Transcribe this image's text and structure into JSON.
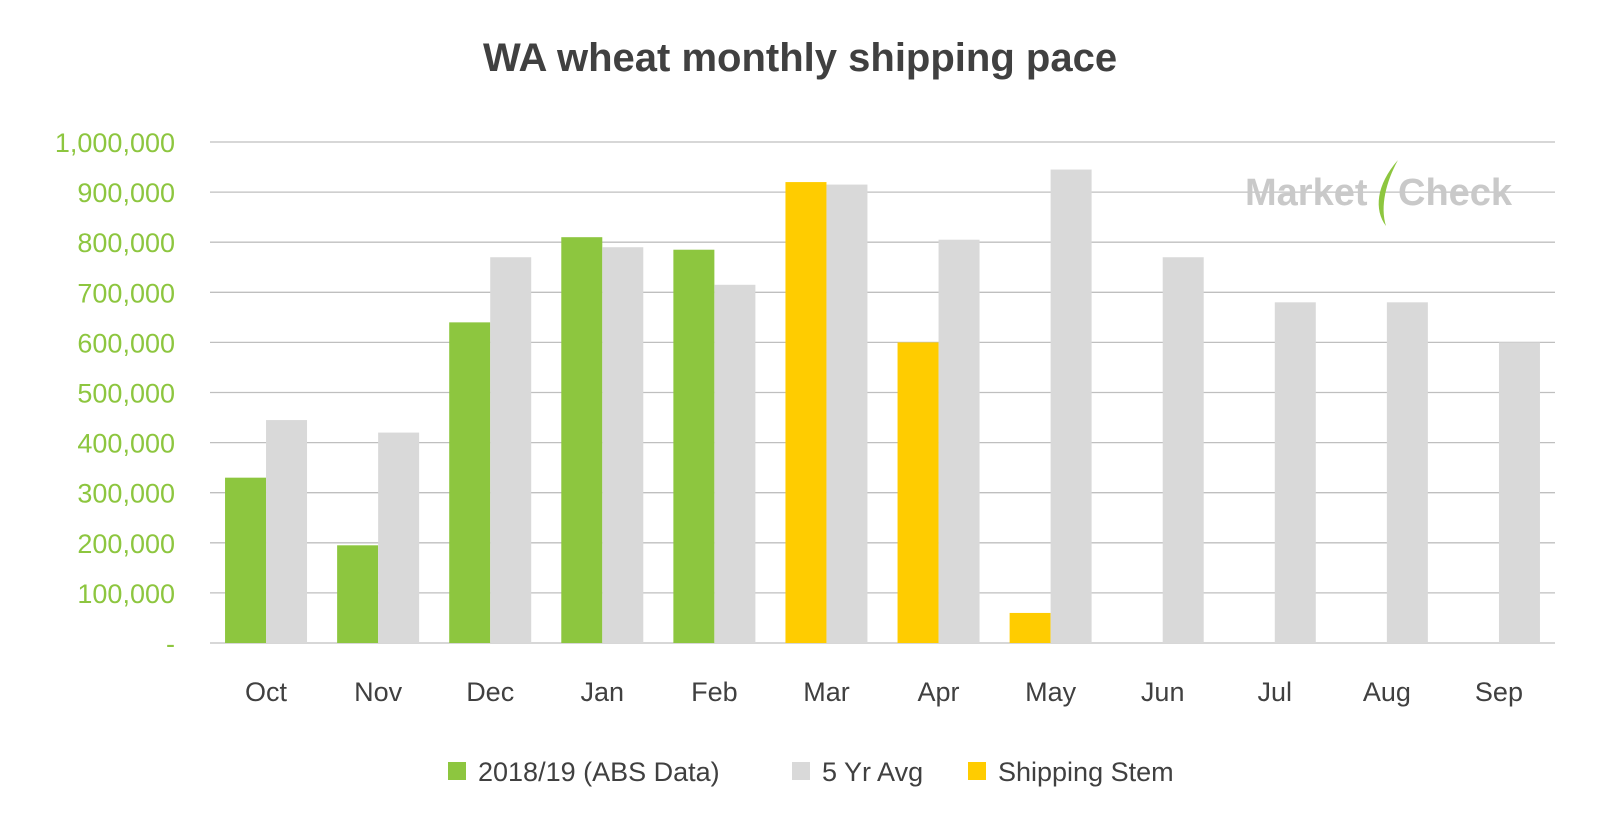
{
  "chart_data": {
    "type": "bar",
    "title": "WA wheat monthly shipping pace",
    "categories": [
      "Oct",
      "Nov",
      "Dec",
      "Jan",
      "Feb",
      "Mar",
      "Apr",
      "May",
      "Jun",
      "Jul",
      "Aug",
      "Sep"
    ],
    "series": [
      {
        "name": "2018/19 (ABS Data)",
        "color": "#8dc63f",
        "values": [
          330000,
          195000,
          640000,
          810000,
          785000,
          null,
          null,
          null,
          null,
          null,
          null,
          null
        ]
      },
      {
        "name": "Shipping Stem",
        "color": "#ffcc00",
        "values": [
          null,
          null,
          null,
          null,
          null,
          920000,
          600000,
          60000,
          null,
          null,
          null,
          null
        ]
      },
      {
        "name": "5 Yr Avg",
        "color": "#d9d9d9",
        "values": [
          445000,
          420000,
          770000,
          790000,
          715000,
          915000,
          805000,
          945000,
          770000,
          680000,
          680000,
          600000
        ]
      }
    ],
    "legend_order": [
      "2018/19 (ABS Data)",
      "5 Yr Avg",
      "Shipping Stem"
    ],
    "legend_position": "bottom",
    "ylim": [
      0,
      1000000
    ],
    "yticks": [
      {
        "value": 0,
        "label": "-"
      },
      {
        "value": 100000,
        "label": "100,000"
      },
      {
        "value": 200000,
        "label": "200,000"
      },
      {
        "value": 300000,
        "label": "300,000"
      },
      {
        "value": 400000,
        "label": "400,000"
      },
      {
        "value": 500000,
        "label": "500,000"
      },
      {
        "value": 600000,
        "label": "600,000"
      },
      {
        "value": 700000,
        "label": "700,000"
      },
      {
        "value": 800000,
        "label": "800,000"
      },
      {
        "value": 900000,
        "label": "900,000"
      },
      {
        "value": 1000000,
        "label": "1,000,000"
      }
    ],
    "grid": true,
    "xlabel": "",
    "ylabel": "",
    "colors": {
      "tick_label": "#8dc63f",
      "grid": "#bfbfbf",
      "text": "#404040"
    }
  },
  "watermark": {
    "text_left": "Market",
    "text_right": "Check",
    "color": "#c9c9c9",
    "accent": "#8dc63f"
  }
}
